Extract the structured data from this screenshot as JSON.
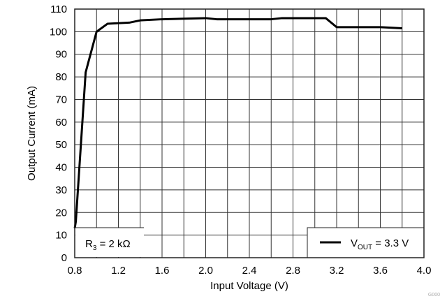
{
  "chart_data": {
    "type": "line",
    "xlabel": "Input Voltage (V)",
    "ylabel": "Output Current (mA)",
    "xlim": [
      0.8,
      4.0
    ],
    "ylim": [
      0,
      110
    ],
    "xticks": [
      "0.8",
      "1.2",
      "1.6",
      "2.0",
      "2.4",
      "2.8",
      "3.2",
      "3.6",
      "4.0"
    ],
    "yticks": [
      "0",
      "10",
      "20",
      "30",
      "40",
      "50",
      "60",
      "70",
      "80",
      "90",
      "100",
      "110"
    ],
    "grid": true,
    "x_grid_step": 0.2,
    "y_grid_step": 10,
    "annotation": {
      "main": "R",
      "sub": "3",
      "rest": " = 2 kΩ"
    },
    "legend": {
      "placement": "bottom-right",
      "main": "V",
      "sub": "OUT",
      "rest": " = 3.3 V"
    },
    "figure_id": "G000",
    "series": [
      {
        "name": "VOUT = 3.3 V",
        "color": "#000000",
        "x": [
          0.8,
          0.81,
          0.9,
          1.0,
          1.1,
          1.3,
          1.4,
          1.6,
          2.0,
          2.1,
          2.6,
          2.7,
          3.1,
          3.2,
          3.6,
          3.8
        ],
        "y": [
          13,
          16,
          82,
          100,
          103.5,
          104,
          105,
          105.5,
          106,
          105.5,
          105.5,
          106,
          106,
          102,
          102,
          101.5
        ]
      }
    ]
  }
}
